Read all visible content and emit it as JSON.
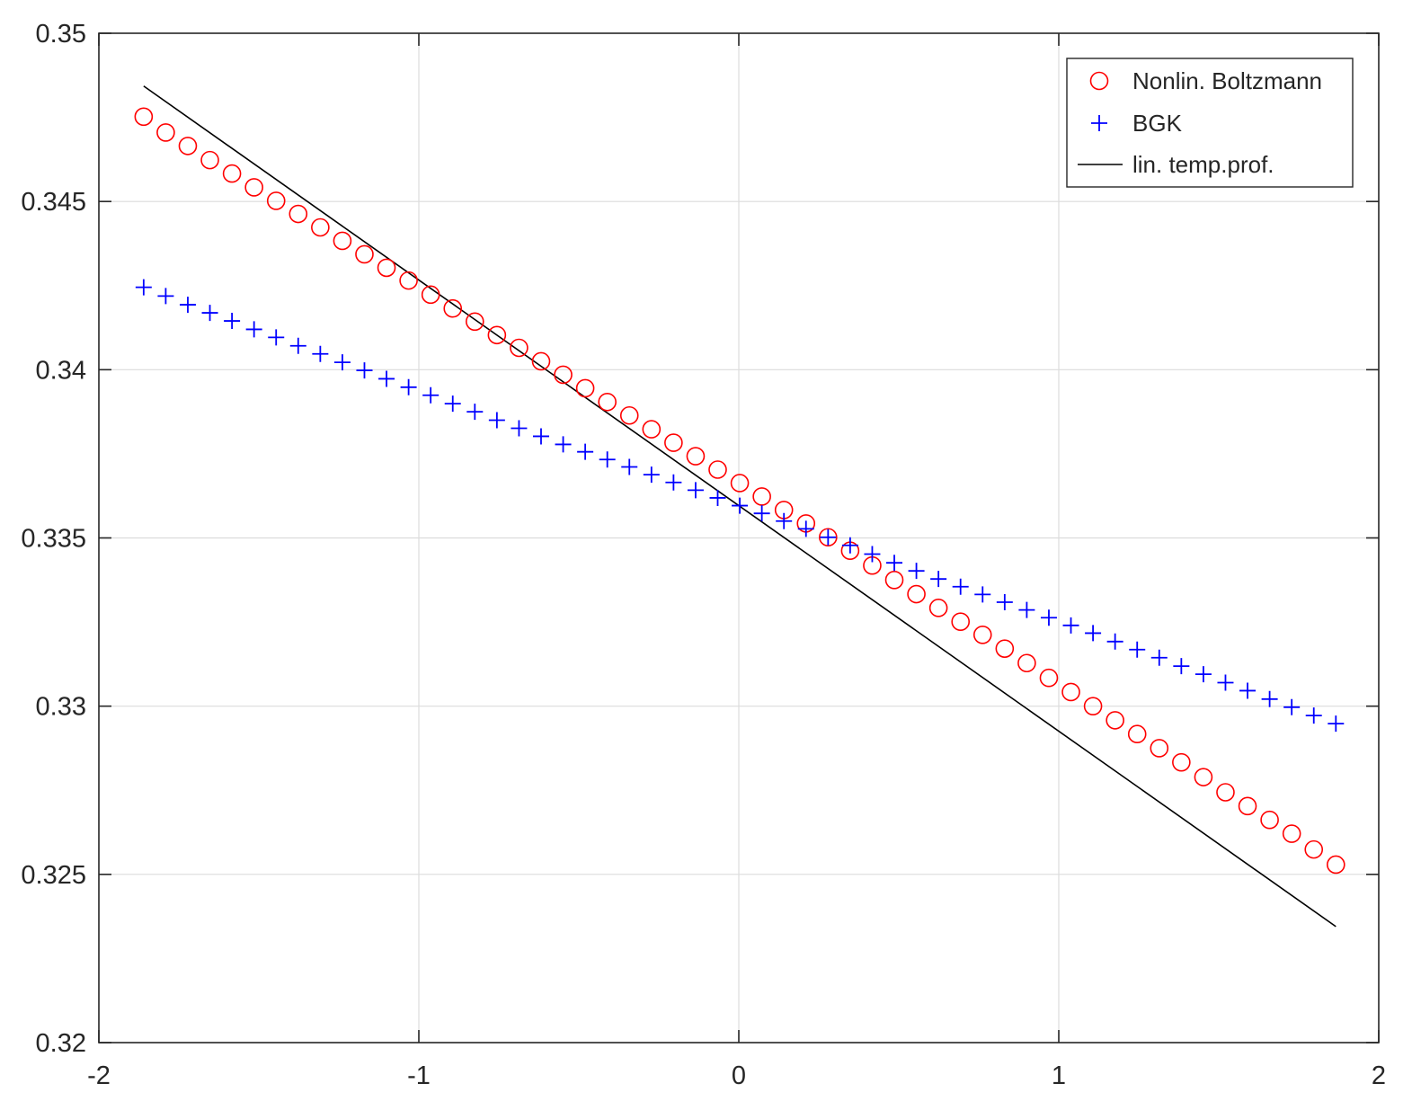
{
  "chart_data": {
    "type": "scatter",
    "title": "",
    "xlabel": "",
    "ylabel": "",
    "xlim": [
      -2,
      2
    ],
    "ylim": [
      0.32,
      0.35
    ],
    "x_ticks": [
      -2,
      -1,
      0,
      1,
      2
    ],
    "x_tick_labels": [
      "-2",
      "-1",
      "0",
      "1",
      "2"
    ],
    "y_ticks": [
      0.32,
      0.325,
      0.33,
      0.335,
      0.34,
      0.345,
      0.35
    ],
    "y_tick_labels": [
      "0.32",
      "0.325",
      "0.33",
      "0.335",
      "0.34",
      "0.345",
      "0.35"
    ],
    "grid": true,
    "legend_position": "top-right",
    "legend": [
      {
        "label": "Nonlin. Boltzmann",
        "marker": "circle",
        "color": "#ff0000"
      },
      {
        "label": "BGK",
        "marker": "plus",
        "color": "#0000ff"
      },
      {
        "label": "lin. temp.prof.",
        "marker": "line",
        "color": "#000000"
      }
    ],
    "x": [
      -1.86,
      -1.791,
      -1.722,
      -1.653,
      -1.584,
      -1.515,
      -1.446,
      -1.377,
      -1.308,
      -1.239,
      -1.17,
      -1.101,
      -1.032,
      -0.963,
      -0.894,
      -0.825,
      -0.756,
      -0.687,
      -0.618,
      -0.549,
      -0.48,
      -0.411,
      -0.342,
      -0.273,
      -0.204,
      -0.135,
      -0.066,
      0.003,
      0.072,
      0.141,
      0.21,
      0.279,
      0.348,
      0.417,
      0.486,
      0.555,
      0.624,
      0.693,
      0.762,
      0.831,
      0.9,
      0.969,
      1.038,
      1.107,
      1.176,
      1.245,
      1.314,
      1.383,
      1.452,
      1.521,
      1.59,
      1.659,
      1.728,
      1.797,
      1.866
    ],
    "series": [
      {
        "name": "Nonlin. Boltzmann",
        "marker": "circle",
        "color": "#ff0000",
        "values": [
          0.34752,
          0.34705,
          0.34665,
          0.34623,
          0.34583,
          0.34542,
          0.34502,
          0.34463,
          0.34423,
          0.34383,
          0.34343,
          0.34303,
          0.34265,
          0.34223,
          0.34182,
          0.34143,
          0.34103,
          0.34065,
          0.34025,
          0.33985,
          0.33945,
          0.33904,
          0.33864,
          0.33823,
          0.33783,
          0.33743,
          0.33703,
          0.33663,
          0.33623,
          0.33583,
          0.33543,
          0.33502,
          0.33462,
          0.33418,
          0.33375,
          0.33333,
          0.33292,
          0.33251,
          0.33212,
          0.33171,
          0.33128,
          0.33084,
          0.33042,
          0.33,
          0.32958,
          0.32917,
          0.32875,
          0.32833,
          0.32789,
          0.32744,
          0.32703,
          0.32662,
          0.32621,
          0.32574,
          0.32529
        ]
      },
      {
        "name": "BGK",
        "marker": "plus",
        "color": "#0000ff",
        "values": [
          0.34245,
          0.34219,
          0.34193,
          0.34169,
          0.34145,
          0.3412,
          0.34096,
          0.34071,
          0.34047,
          0.34022,
          0.33998,
          0.33973,
          0.33948,
          0.33924,
          0.33899,
          0.33875,
          0.3385,
          0.33826,
          0.33802,
          0.33778,
          0.33756,
          0.33733,
          0.33711,
          0.33688,
          0.33665,
          0.33642,
          0.33619,
          0.33596,
          0.33573,
          0.3355,
          0.33527,
          0.33502,
          0.33478,
          0.33452,
          0.33426,
          0.33402,
          0.33378,
          0.33355,
          0.33332,
          0.33309,
          0.33286,
          0.33263,
          0.3324,
          0.33217,
          0.33192,
          0.33168,
          0.33144,
          0.33119,
          0.33095,
          0.3307,
          0.33046,
          0.33021,
          0.32997,
          0.32972,
          0.32948
        ]
      }
    ],
    "line_series": {
      "name": "lin. temp.prof.",
      "color": "#000000",
      "x": [
        -1.86,
        1.866
      ],
      "values": [
        0.34843,
        0.32345
      ]
    }
  }
}
